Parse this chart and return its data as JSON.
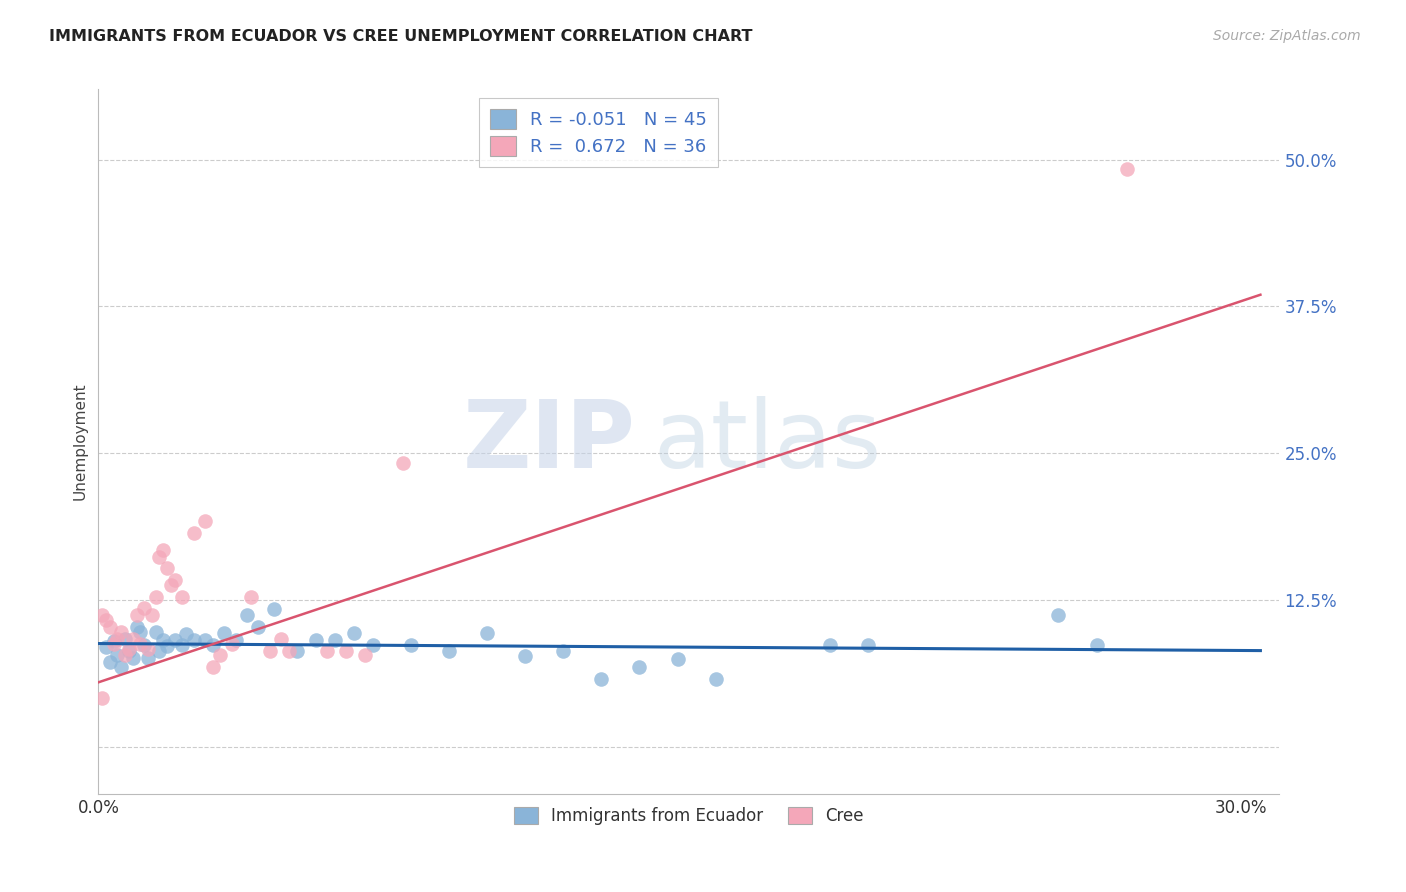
{
  "title": "IMMIGRANTS FROM ECUADOR VS CREE UNEMPLOYMENT CORRELATION CHART",
  "source": "Source: ZipAtlas.com",
  "ylabel": "Unemployment",
  "xlim": [
    0.0,
    0.31
  ],
  "ylim": [
    -0.04,
    0.56
  ],
  "yticks": [
    0.0,
    0.125,
    0.25,
    0.375,
    0.5
  ],
  "ytick_labels": [
    "",
    "12.5%",
    "25.0%",
    "37.5%",
    "50.0%"
  ],
  "xticks": [
    0.0,
    0.05,
    0.1,
    0.15,
    0.2,
    0.25,
    0.3
  ],
  "xtick_labels": [
    "0.0%",
    "",
    "",
    "",
    "",
    "",
    "30.0%"
  ],
  "watermark_zip": "ZIP",
  "watermark_atlas": "atlas",
  "legend_blue_r": "-0.051",
  "legend_blue_n": "45",
  "legend_pink_r": "0.672",
  "legend_pink_n": "36",
  "blue_color": "#8ab4d8",
  "pink_color": "#f4a7b9",
  "blue_line_color": "#1f5fa6",
  "pink_line_color": "#d9546e",
  "blue_scatter": [
    [
      0.002,
      0.085
    ],
    [
      0.003,
      0.072
    ],
    [
      0.004,
      0.09
    ],
    [
      0.005,
      0.078
    ],
    [
      0.006,
      0.068
    ],
    [
      0.007,
      0.092
    ],
    [
      0.008,
      0.082
    ],
    [
      0.009,
      0.076
    ],
    [
      0.01,
      0.102
    ],
    [
      0.011,
      0.098
    ],
    [
      0.012,
      0.087
    ],
    [
      0.013,
      0.076
    ],
    [
      0.015,
      0.098
    ],
    [
      0.016,
      0.082
    ],
    [
      0.017,
      0.091
    ],
    [
      0.018,
      0.086
    ],
    [
      0.02,
      0.091
    ],
    [
      0.022,
      0.087
    ],
    [
      0.023,
      0.096
    ],
    [
      0.025,
      0.091
    ],
    [
      0.028,
      0.091
    ],
    [
      0.03,
      0.087
    ],
    [
      0.033,
      0.097
    ],
    [
      0.036,
      0.091
    ],
    [
      0.039,
      0.112
    ],
    [
      0.042,
      0.102
    ],
    [
      0.046,
      0.117
    ],
    [
      0.052,
      0.082
    ],
    [
      0.057,
      0.091
    ],
    [
      0.062,
      0.091
    ],
    [
      0.067,
      0.097
    ],
    [
      0.072,
      0.087
    ],
    [
      0.082,
      0.087
    ],
    [
      0.092,
      0.082
    ],
    [
      0.102,
      0.097
    ],
    [
      0.112,
      0.077
    ],
    [
      0.122,
      0.082
    ],
    [
      0.132,
      0.058
    ],
    [
      0.142,
      0.068
    ],
    [
      0.152,
      0.075
    ],
    [
      0.162,
      0.058
    ],
    [
      0.192,
      0.087
    ],
    [
      0.202,
      0.087
    ],
    [
      0.252,
      0.112
    ],
    [
      0.262,
      0.087
    ]
  ],
  "pink_scatter": [
    [
      0.001,
      0.112
    ],
    [
      0.002,
      0.108
    ],
    [
      0.003,
      0.102
    ],
    [
      0.004,
      0.088
    ],
    [
      0.005,
      0.092
    ],
    [
      0.006,
      0.098
    ],
    [
      0.007,
      0.078
    ],
    [
      0.008,
      0.083
    ],
    [
      0.009,
      0.092
    ],
    [
      0.01,
      0.112
    ],
    [
      0.011,
      0.088
    ],
    [
      0.012,
      0.118
    ],
    [
      0.013,
      0.083
    ],
    [
      0.014,
      0.112
    ],
    [
      0.015,
      0.128
    ],
    [
      0.016,
      0.162
    ],
    [
      0.017,
      0.168
    ],
    [
      0.018,
      0.152
    ],
    [
      0.019,
      0.138
    ],
    [
      0.02,
      0.142
    ],
    [
      0.022,
      0.128
    ],
    [
      0.025,
      0.182
    ],
    [
      0.028,
      0.192
    ],
    [
      0.03,
      0.068
    ],
    [
      0.032,
      0.078
    ],
    [
      0.035,
      0.088
    ],
    [
      0.04,
      0.128
    ],
    [
      0.045,
      0.082
    ],
    [
      0.048,
      0.092
    ],
    [
      0.05,
      0.082
    ],
    [
      0.06,
      0.082
    ],
    [
      0.065,
      0.082
    ],
    [
      0.07,
      0.078
    ],
    [
      0.08,
      0.242
    ],
    [
      0.001,
      0.042
    ],
    [
      0.27,
      0.492
    ]
  ],
  "blue_trendline_x": [
    0.0,
    0.305
  ],
  "blue_trendline_y": [
    0.088,
    0.082
  ],
  "pink_trendline_x": [
    0.0,
    0.305
  ],
  "pink_trendline_y": [
    0.055,
    0.385
  ]
}
